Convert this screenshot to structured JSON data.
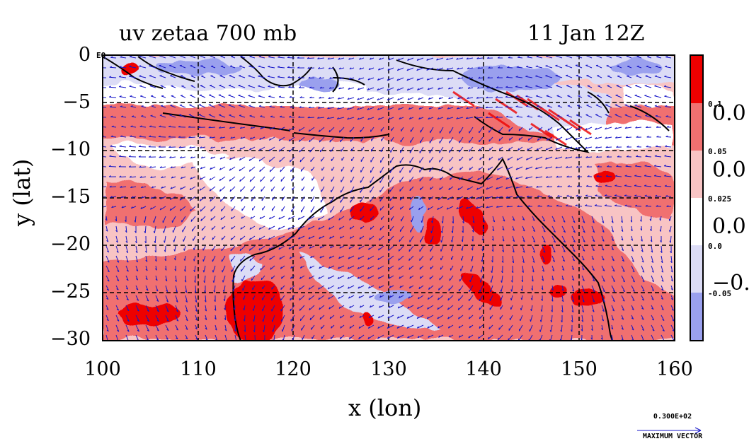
{
  "title": {
    "left": "uv zetaa 700 mb",
    "right": "11 Jan 12Z"
  },
  "axes": {
    "xlabel": "x (lon)",
    "ylabel": "y (lat)",
    "xticks": [
      "100",
      "110",
      "120",
      "130",
      "140",
      "150",
      "160"
    ],
    "yticks": [
      "0",
      "−5",
      "−10",
      "−15",
      "−20",
      "−25",
      "−30"
    ],
    "eq_label": "EQ"
  },
  "colorbar": {
    "levels": [
      "0.1",
      "0.05",
      "0.025",
      "0.0",
      "-0.05"
    ],
    "big_labels": [
      "0.0",
      "0.0",
      "0.0",
      "−0."
    ],
    "colors": [
      "#ee0000",
      "#f07070",
      "#f8c4c4",
      "#ffffff",
      "#dcdcf6",
      "#9aa0ee"
    ]
  },
  "vector_legend": {
    "value": "0.300E+02",
    "label": "MAXIMUM VECTOR"
  },
  "map": {
    "lon_range": [
      100,
      160
    ],
    "lat_range": [
      -30,
      0
    ],
    "grid_dashed": true,
    "field": "absolute vorticity (zetaa)",
    "vector_color": "#1515c8"
  }
}
